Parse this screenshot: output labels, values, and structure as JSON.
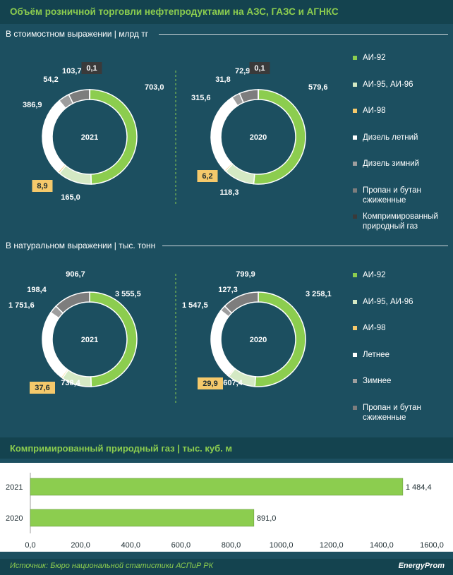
{
  "title": "Объём розничной торговли нефтепродуктами на АЗС, ГАЗС и АГНКС",
  "section_value_label": "В стоимостном выражении | млрд тг",
  "section_volume_label": "В натуральном выражении | тыс. тонн",
  "legend_value": [
    {
      "label": "АИ-92",
      "color": "#8ccd4f"
    },
    {
      "label": "АИ-95, АИ-96",
      "color": "#d4e9c4"
    },
    {
      "label": "АИ-98",
      "color": "#f5c96b"
    },
    {
      "label": "Дизель летний",
      "color": "#ffffff"
    },
    {
      "label": "Дизель зимний",
      "color": "#9e9e9e"
    },
    {
      "label": "Пропан и бутан сжиженные",
      "color": "#7d7d7d"
    },
    {
      "label": "Компримированный природный газ",
      "color": "#3a3a3a"
    }
  ],
  "legend_volume": [
    {
      "label": "АИ-92",
      "color": "#8ccd4f"
    },
    {
      "label": "АИ-95, АИ-96",
      "color": "#d4e9c4"
    },
    {
      "label": "АИ-98",
      "color": "#f5c96b"
    },
    {
      "label": "Летнее",
      "color": "#ffffff"
    },
    {
      "label": "Зимнее",
      "color": "#9e9e9e"
    },
    {
      "label": "Пропан и бутан сжиженные",
      "color": "#7d7d7d"
    }
  ],
  "chart_data": [
    {
      "type": "pie",
      "variant": "donut",
      "title": "2021",
      "categories": [
        "АИ-92",
        "АИ-95, АИ-96",
        "АИ-98",
        "Дизель летний",
        "Дизель зимний",
        "Пропан и бутан сжиженные",
        "Компримированный природный газ"
      ],
      "values": [
        703.0,
        165.0,
        8.9,
        386.9,
        54.2,
        103.7,
        0.1
      ],
      "labels": [
        "703,0",
        "165,0",
        "8,9",
        "386,9",
        "54,2",
        "103,7",
        "0,1"
      ]
    },
    {
      "type": "pie",
      "variant": "donut",
      "title": "2020",
      "categories": [
        "АИ-92",
        "АИ-95, АИ-96",
        "АИ-98",
        "Дизель летний",
        "Дизель зимний",
        "Пропан и бутан сжиженные",
        "Компримированный природный газ"
      ],
      "values": [
        579.6,
        118.3,
        6.2,
        315.6,
        31.8,
        72.9,
        0.1
      ],
      "labels": [
        "579,6",
        "118,3",
        "6,2",
        "315,6",
        "31,8",
        "72,9",
        "0,1"
      ]
    },
    {
      "type": "pie",
      "variant": "donut",
      "title": "2021",
      "categories": [
        "АИ-92",
        "АИ-95, АИ-96",
        "АИ-98",
        "Летнее",
        "Зимнее",
        "Пропан и бутан сжиженные"
      ],
      "values": [
        3555.5,
        738.4,
        37.6,
        1751.6,
        198.4,
        906.7
      ],
      "labels": [
        "3 555,5",
        "738,4",
        "37,6",
        "1 751,6",
        "198,4",
        "906,7"
      ]
    },
    {
      "type": "pie",
      "variant": "donut",
      "title": "2020",
      "categories": [
        "АИ-92",
        "АИ-95, АИ-96",
        "АИ-98",
        "Летнее",
        "Зимнее",
        "Пропан и бутан сжиженные"
      ],
      "values": [
        3258.1,
        607.4,
        29.9,
        1547.5,
        127.3,
        799.9
      ],
      "labels": [
        "3 258,1",
        "607,4",
        "29,9",
        "1 547,5",
        "127,3",
        "799,9"
      ]
    },
    {
      "type": "bar",
      "orientation": "horizontal",
      "title": "Компримированный природный газ | тыс. куб. м",
      "categories": [
        "2021",
        "2020"
      ],
      "values": [
        1484.4,
        891.0
      ],
      "value_labels": [
        "1 484,4",
        "891,0"
      ],
      "xlim": [
        0,
        1600
      ],
      "xticks": [
        "0,0",
        "200,0",
        "400,0",
        "600,0",
        "800,0",
        "1000,0",
        "1200,0",
        "1400,0",
        "1600,0"
      ]
    }
  ],
  "source": "Источник: Бюро национальной статистики АСПиР РК",
  "logo": "EnergyProm"
}
